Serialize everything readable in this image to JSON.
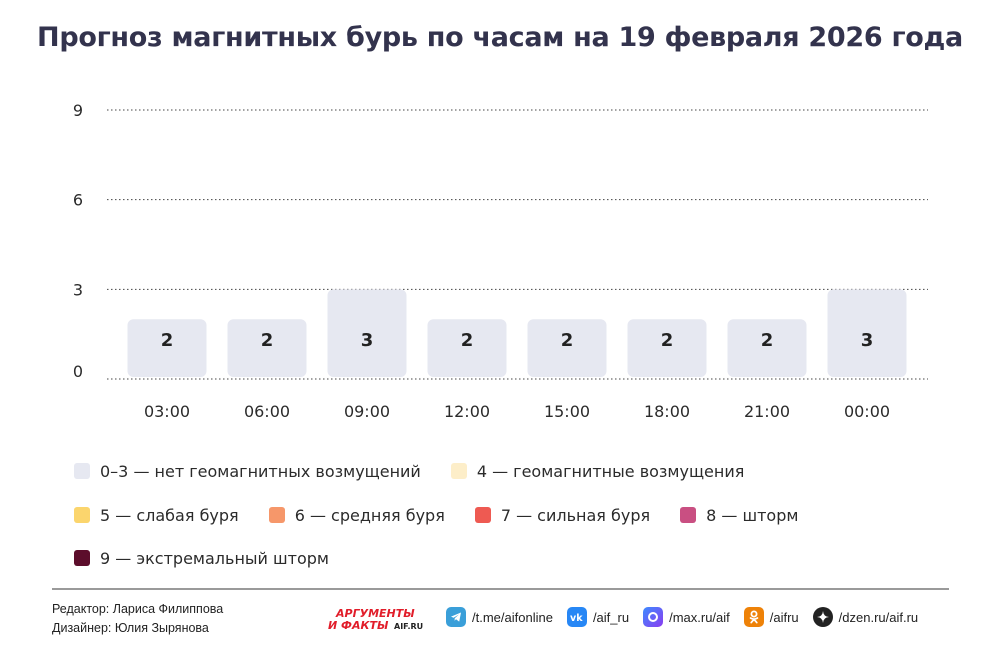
{
  "title": "Прогноз магнитных бурь по часам на 19 февраля 2026 года",
  "chart_data": {
    "type": "bar",
    "categories": [
      "03:00",
      "06:00",
      "09:00",
      "12:00",
      "15:00",
      "18:00",
      "21:00",
      "00:00"
    ],
    "values": [
      2,
      2,
      3,
      2,
      2,
      2,
      2,
      3
    ],
    "ylim": [
      0,
      9
    ],
    "yticks": [
      0,
      3,
      6,
      9
    ],
    "grid": true,
    "bar_color": "#e6e8f1",
    "legend": [
      {
        "label": "0–3 — нет геомагнитных возмущений",
        "color": "#e6e8f1"
      },
      {
        "label": "4 — геомагнитные возмущения",
        "color": "#fdeec9"
      },
      {
        "label": "5 — слабая буря",
        "color": "#fbd56d"
      },
      {
        "label": "6 — средняя буря",
        "color": "#f6976a"
      },
      {
        "label": "7 — сильная буря",
        "color": "#ee5a52"
      },
      {
        "label": "8 — шторм",
        "color": "#c94f82"
      },
      {
        "label": "9 — экстремальный шторм",
        "color": "#5c0d2b"
      }
    ]
  },
  "footer": {
    "editor": "Редактор: Лариса Филиппова",
    "designer": "Дизайнер: Юлия Зырянова",
    "logo_text_top": "АРГУМЕНТЫ",
    "logo_text_bottom": "И ФАКТЫ",
    "logo_domain": "AIF.RU",
    "socials": [
      {
        "icon": "telegram-icon",
        "label": "/t.me/aifonline",
        "color": "#3a9fd9"
      },
      {
        "icon": "vk-icon",
        "label": "/aif_ru",
        "color": "#2787f5"
      },
      {
        "icon": "max-icon",
        "label": "/max.ru/aif",
        "color": "#5b4de0"
      },
      {
        "icon": "ok-icon",
        "label": "/aifru",
        "color": "#ee8208"
      },
      {
        "icon": "dzen-icon",
        "label": "/dzen.ru/aif.ru",
        "color": "#222222"
      }
    ]
  }
}
